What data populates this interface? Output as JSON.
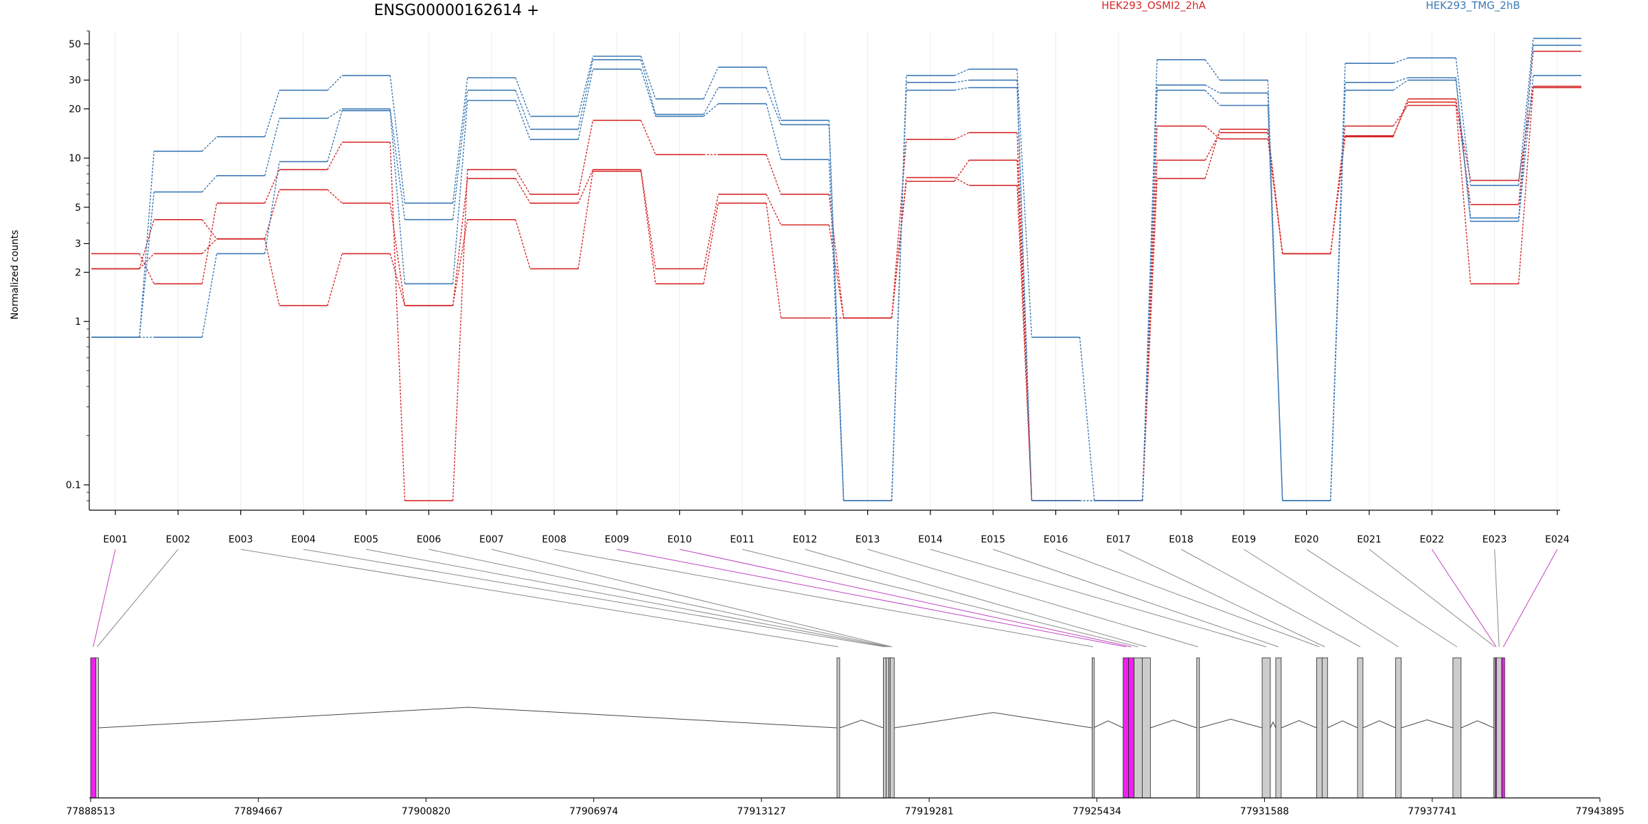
{
  "chart_data": {
    "type": "line",
    "title": "ENSG00000162614 +",
    "ylabel": "Normalized counts",
    "y_scale": "log",
    "ylim": [
      0.07,
      60
    ],
    "y_ticks": [
      0.1,
      1,
      2,
      3,
      5,
      10,
      20,
      30,
      50
    ],
    "grid": "vertical",
    "categories": [
      "E001",
      "E002",
      "E003",
      "E004",
      "E005",
      "E006",
      "E007",
      "E008",
      "E009",
      "E010",
      "E011",
      "E012",
      "E013",
      "E014",
      "E015",
      "E016",
      "E017",
      "E018",
      "E019",
      "E020",
      "E021",
      "E022",
      "E023",
      "E024"
    ],
    "legend": [
      {
        "name": "HEK293_OSMI2_2hA",
        "color": "#d62728",
        "placement": "top-center"
      },
      {
        "name": "HEK293_TMG_2hB",
        "color": "#3a78b5",
        "placement": "top-right"
      }
    ],
    "series": [
      {
        "group": "HEK293_OSMI2_2hA",
        "color": "#d62728",
        "values": [
          2.6,
          1.7,
          5.3,
          8.5,
          12.5,
          0.08,
          8.5,
          6.0,
          17.0,
          10.5,
          10.5,
          6.0,
          1.05,
          7.2,
          9.7,
          0.08,
          0.08,
          7.5,
          15.0,
          2.6,
          13.5,
          23.0,
          5.2,
          45.0
        ]
      },
      {
        "group": "HEK293_OSMI2_2hA",
        "color": "#d62728",
        "values": [
          2.1,
          4.2,
          3.2,
          6.4,
          5.3,
          1.25,
          7.5,
          5.3,
          8.5,
          2.1,
          6.0,
          3.9,
          1.05,
          7.6,
          6.8,
          0.08,
          0.08,
          9.7,
          14.3,
          2.6,
          13.7,
          22.0,
          7.3,
          27.0
        ]
      },
      {
        "group": "HEK293_OSMI2_2hA",
        "color": "#d62728",
        "values": [
          2.1,
          2.6,
          3.2,
          1.25,
          2.6,
          1.25,
          4.2,
          2.1,
          8.3,
          1.7,
          5.3,
          1.05,
          1.05,
          13.0,
          14.3,
          0.08,
          0.08,
          15.7,
          13.1,
          2.6,
          15.7,
          21.0,
          1.7,
          27.5
        ]
      },
      {
        "group": "HEK293_TMG_2hB",
        "color": "#3a78b5",
        "values": [
          0.8,
          11.0,
          13.5,
          26.0,
          32.0,
          5.3,
          31.0,
          18.0,
          42.0,
          23.0,
          36.0,
          17.0,
          0.08,
          32.0,
          35.0,
          0.8,
          0.08,
          40.0,
          30.0,
          0.08,
          38.0,
          41.0,
          6.8,
          54.0
        ]
      },
      {
        "group": "HEK293_TMG_2hB",
        "color": "#3a78b5",
        "values": [
          0.8,
          6.2,
          7.8,
          17.5,
          20.0,
          4.2,
          26.0,
          15.0,
          40.0,
          18.5,
          27.0,
          16.0,
          0.08,
          29.0,
          30.0,
          0.08,
          0.08,
          28.0,
          25.0,
          0.08,
          29.0,
          31.0,
          4.3,
          49.0
        ]
      },
      {
        "group": "HEK293_TMG_2hB",
        "color": "#3a78b5",
        "values": [
          0.8,
          0.8,
          2.6,
          9.5,
          19.5,
          1.7,
          22.5,
          13.0,
          35.0,
          18.0,
          21.5,
          9.8,
          0.08,
          26.0,
          27.0,
          0.08,
          0.08,
          26.0,
          21.0,
          0.08,
          26.0,
          30.0,
          4.1,
          32.0
        ]
      }
    ],
    "gene_model": {
      "axis_ticks": [
        "77888513",
        "77894667",
        "77900820",
        "77906974",
        "77913127",
        "77919281",
        "77925434",
        "77931588",
        "77937741",
        "77943895"
      ],
      "genome_start": 77888513,
      "genome_end": 77943895,
      "highlight_color": "#ee22ee",
      "highlight_exons": [
        "E001",
        "E009",
        "E010",
        "E022",
        "E024"
      ],
      "exon_starts": [
        77888513,
        77888700,
        77915900,
        77917600,
        77917700,
        77917800,
        77917850,
        77925260,
        77926400,
        77926600,
        77926800,
        77927100,
        77929100,
        77931500,
        77932000,
        77933500,
        77933700,
        77935000,
        77936400,
        77938500,
        77940000,
        77940050,
        77940100,
        77940300
      ],
      "exon_ends": [
        77888700,
        77888800,
        77916000,
        77917700,
        77917800,
        77917850,
        77918000,
        77925300,
        77926600,
        77926800,
        77927100,
        77927400,
        77929200,
        77931800,
        77932200,
        77933700,
        77933900,
        77935200,
        77936600,
        77938800,
        77940040,
        77940090,
        77940290,
        77940400
      ]
    }
  }
}
